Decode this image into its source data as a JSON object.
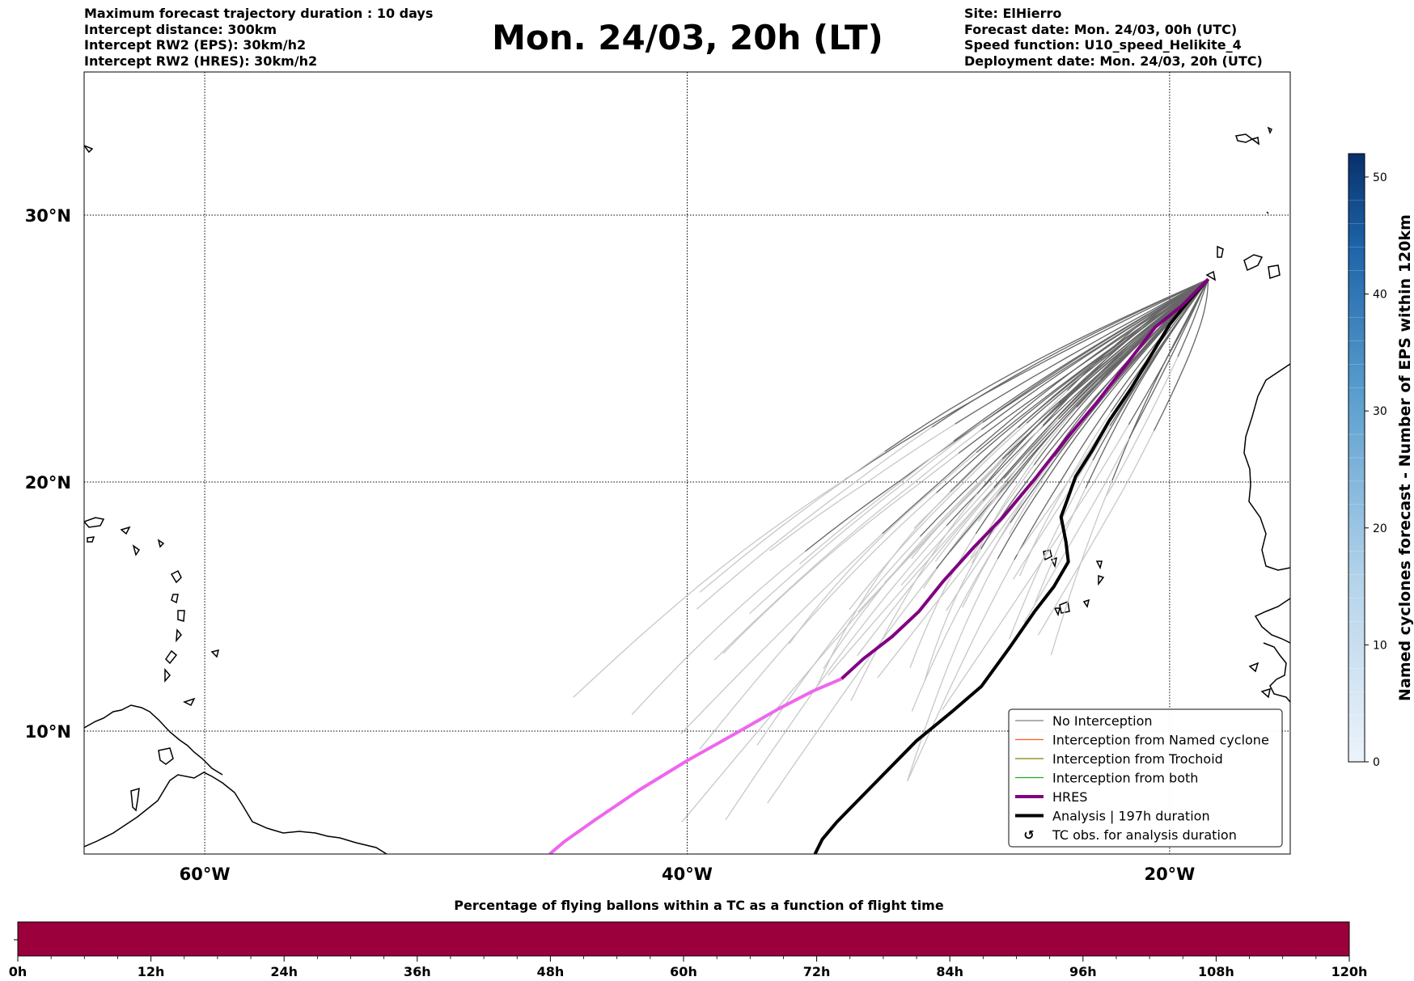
{
  "header_left": {
    "line1": "Maximum forecast trajectory duration : 10 days",
    "line2": "Intercept distance: 300km",
    "line3": "Intercept RW2 (EPS):  30km/h2",
    "line4": "Intercept RW2 (HRES): 30km/h2"
  },
  "title": "Mon. 24/03, 20h (LT)",
  "header_right": {
    "line1": "Site: ElHierro",
    "line2": "Forecast date: Mon. 24/03, 00h (UTC)",
    "line3": "Speed function: U10_speed_Helikite_4",
    "line4": "Deployment date: Mon. 24/03, 20h (UTC)"
  },
  "map": {
    "lon_range": [
      -65,
      -15
    ],
    "lat_range": [
      5,
      34.5
    ],
    "lon_ticks": [
      {
        "value": -60,
        "label": "60°W"
      },
      {
        "value": -40,
        "label": "40°W"
      },
      {
        "value": -20,
        "label": "20°W"
      }
    ],
    "lat_ticks": [
      {
        "value": 10,
        "label": "10°N"
      },
      {
        "value": 20,
        "label": "20°N"
      },
      {
        "value": 30,
        "label": "30°N"
      }
    ],
    "hres_track": [
      [
        -18.4,
        27.6
      ],
      [
        -19.5,
        26.6
      ],
      [
        -20.6,
        25.8
      ],
      [
        -21.8,
        24.4
      ],
      [
        -23.0,
        23.0
      ],
      [
        -24.3,
        21.6
      ],
      [
        -25.6,
        20.1
      ],
      [
        -26.9,
        18.6
      ],
      [
        -28.1,
        17.4
      ],
      [
        -29.4,
        16.0
      ],
      [
        -30.4,
        14.8
      ],
      [
        -31.5,
        13.8
      ],
      [
        -32.7,
        12.9
      ],
      [
        -33.6,
        12.1
      ],
      [
        -34.8,
        11.6
      ],
      [
        -36.2,
        10.9
      ],
      [
        -38.0,
        9.9
      ],
      [
        -40.0,
        8.8
      ],
      [
        -42.0,
        7.6
      ],
      [
        -43.8,
        6.4
      ],
      [
        -45.1,
        5.5
      ],
      [
        -45.7,
        5.0
      ]
    ],
    "analysis_track": [
      [
        -18.4,
        27.6
      ],
      [
        -19.2,
        26.8
      ],
      [
        -20.0,
        25.9
      ],
      [
        -20.8,
        24.7
      ],
      [
        -21.6,
        23.5
      ],
      [
        -22.5,
        22.3
      ],
      [
        -23.2,
        21.2
      ],
      [
        -23.9,
        20.2
      ],
      [
        -24.2,
        19.4
      ],
      [
        -24.5,
        18.6
      ],
      [
        -24.3,
        17.6
      ],
      [
        -24.2,
        16.8
      ],
      [
        -24.8,
        15.8
      ],
      [
        -25.6,
        14.8
      ],
      [
        -26.6,
        13.4
      ],
      [
        -27.8,
        11.8
      ],
      [
        -29.0,
        10.8
      ],
      [
        -30.5,
        9.6
      ],
      [
        -31.8,
        8.3
      ],
      [
        -32.9,
        7.2
      ],
      [
        -33.8,
        6.3
      ],
      [
        -34.4,
        5.6
      ],
      [
        -34.7,
        5.0
      ]
    ],
    "hres_color_old": "#800080",
    "hres_color_new": "#ee66ee",
    "analysis_color": "#000000"
  },
  "legend": {
    "items": [
      {
        "label": "No Interception",
        "color": "#808080",
        "kind": "thin"
      },
      {
        "label": "Interception from Named cyclone",
        "color": "#ff5522",
        "kind": "thin"
      },
      {
        "label": "Interception from Trochoid",
        "color": "#808000",
        "kind": "thin"
      },
      {
        "label": "Interception from both",
        "color": "#22aa22",
        "kind": "thin"
      },
      {
        "label": "HRES",
        "color": "#800080",
        "kind": "thick"
      },
      {
        "label": "Analysis | 197h duration",
        "color": "#000000",
        "kind": "thick"
      },
      {
        "label": "TC obs. for analysis duration",
        "color": "#000000",
        "kind": "symbol",
        "symbol": "↺"
      }
    ]
  },
  "colorbar": {
    "title": "Named cyclones forecast - Number of EPS within 120km",
    "min": 0,
    "max": 52,
    "ticks": [
      0,
      10,
      20,
      30,
      40,
      50
    ],
    "color_low": "#ecf3fb",
    "color_high": "#08306b"
  },
  "flight_bar": {
    "title": "Percentage of flying ballons within a TC as a function of flight time",
    "color": "#9b003c",
    "ticks": [
      "0h",
      "12h",
      "24h",
      "36h",
      "48h",
      "60h",
      "72h",
      "84h",
      "96h",
      "108h",
      "120h"
    ]
  }
}
